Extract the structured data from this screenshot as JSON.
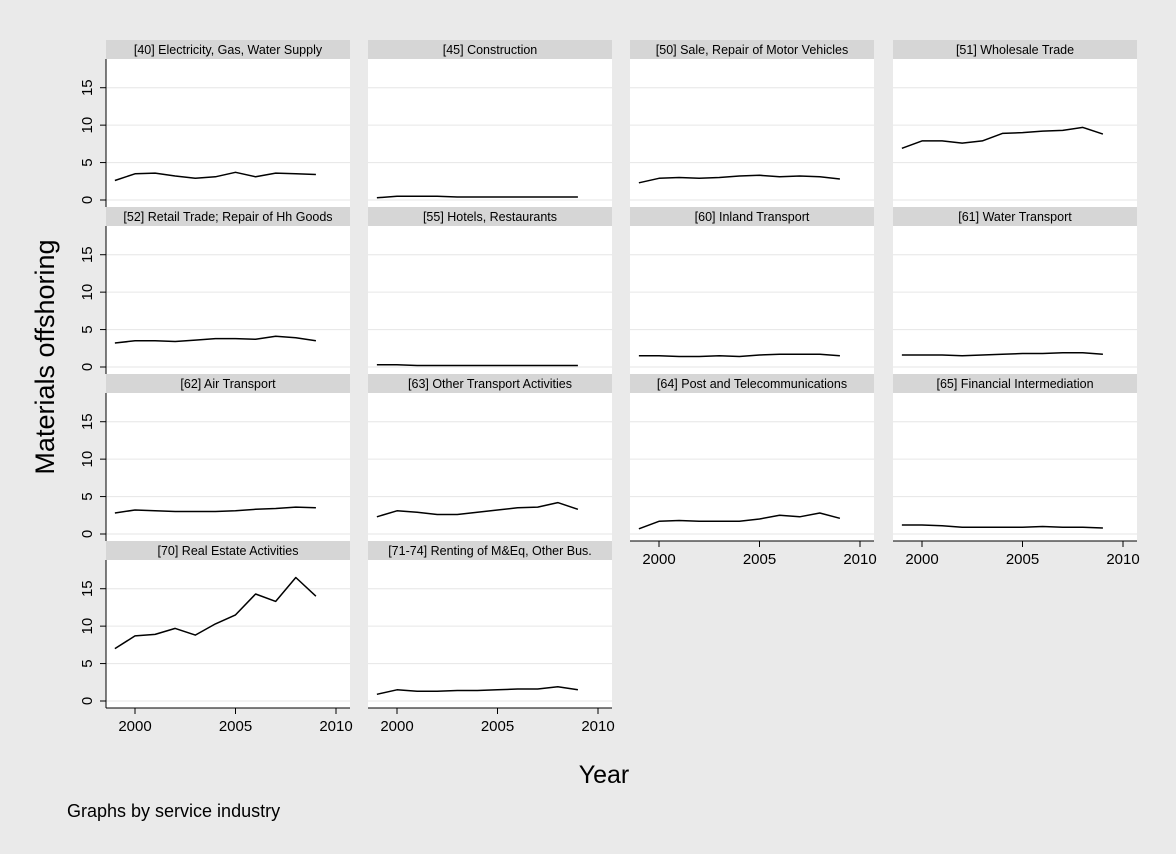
{
  "chart_data": {
    "type": "line",
    "ylabel": "Materials offshoring",
    "xlabel": "Year",
    "note": "Graphs by service industry",
    "ylim": [
      0,
      18
    ],
    "xlim": [
      1998,
      2010
    ],
    "y_ticks": [
      0,
      5,
      10,
      15
    ],
    "x_ticks": [
      2000,
      2005,
      2010
    ],
    "grid": true,
    "x": [
      1999,
      2000,
      2001,
      2002,
      2003,
      2004,
      2005,
      2006,
      2007,
      2008,
      2009
    ],
    "series": [
      {
        "name": "[40] Electricity, Gas, Water Supply",
        "values": [
          2.6,
          3.5,
          3.6,
          3.2,
          2.9,
          3.1,
          3.7,
          3.1,
          3.6,
          3.5,
          3.4
        ]
      },
      {
        "name": "[45] Construction",
        "values": [
          0.3,
          0.5,
          0.5,
          0.5,
          0.4,
          0.4,
          0.4,
          0.4,
          0.4,
          0.4,
          0.4
        ]
      },
      {
        "name": "[50] Sale, Repair of Motor Vehicles",
        "values": [
          2.3,
          2.9,
          3.0,
          2.9,
          3.0,
          3.2,
          3.3,
          3.1,
          3.2,
          3.1,
          2.8
        ]
      },
      {
        "name": "[51] Wholesale Trade",
        "values": [
          6.9,
          7.9,
          7.9,
          7.6,
          7.9,
          8.9,
          9.0,
          9.2,
          9.3,
          9.7,
          8.8
        ]
      },
      {
        "name": "[52] Retail Trade; Repair of Hh Goods",
        "values": [
          3.2,
          3.5,
          3.5,
          3.4,
          3.6,
          3.8,
          3.8,
          3.7,
          4.1,
          3.9,
          3.5
        ]
      },
      {
        "name": "[55] Hotels, Restaurants",
        "values": [
          0.3,
          0.3,
          0.2,
          0.2,
          0.2,
          0.2,
          0.2,
          0.2,
          0.2,
          0.2,
          0.2
        ]
      },
      {
        "name": "[60] Inland Transport",
        "values": [
          1.5,
          1.5,
          1.4,
          1.4,
          1.5,
          1.4,
          1.6,
          1.7,
          1.7,
          1.7,
          1.5
        ]
      },
      {
        "name": "[61] Water Transport",
        "values": [
          1.6,
          1.6,
          1.6,
          1.5,
          1.6,
          1.7,
          1.8,
          1.8,
          1.9,
          1.9,
          1.7
        ]
      },
      {
        "name": "[62] Air Transport",
        "values": [
          2.8,
          3.2,
          3.1,
          3.0,
          3.0,
          3.0,
          3.1,
          3.3,
          3.4,
          3.6,
          3.5
        ]
      },
      {
        "name": "[63] Other Transport Activities",
        "values": [
          2.3,
          3.1,
          2.9,
          2.6,
          2.6,
          2.9,
          3.2,
          3.5,
          3.6,
          4.2,
          3.3
        ]
      },
      {
        "name": "[64] Post and Telecommunications",
        "values": [
          0.7,
          1.7,
          1.8,
          1.7,
          1.7,
          1.7,
          2.0,
          2.5,
          2.3,
          2.8,
          2.1
        ]
      },
      {
        "name": "[65] Financial Intermediation",
        "values": [
          1.2,
          1.2,
          1.1,
          0.9,
          0.9,
          0.9,
          0.9,
          1.0,
          0.9,
          0.9,
          0.8
        ]
      },
      {
        "name": "[70] Real Estate Activities",
        "values": [
          7.0,
          8.7,
          8.9,
          9.7,
          8.8,
          10.3,
          11.5,
          14.3,
          13.3,
          16.5,
          14.0
        ]
      },
      {
        "name": "[71-74] Renting of M&Eq, Other Bus.",
        "values": [
          0.9,
          1.5,
          1.3,
          1.3,
          1.4,
          1.4,
          1.5,
          1.6,
          1.6,
          1.9,
          1.5
        ]
      }
    ]
  }
}
